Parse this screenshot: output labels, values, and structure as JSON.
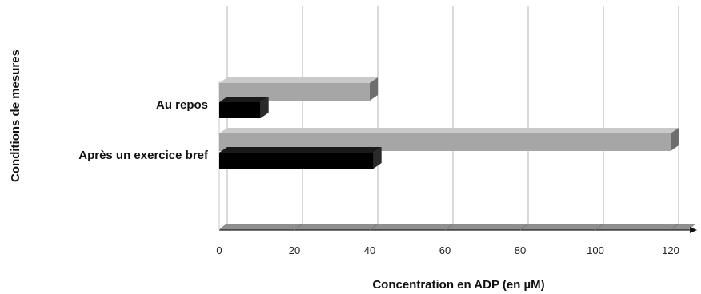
{
  "chart_data": {
    "type": "bar",
    "orientation": "horizontal",
    "style": "3d",
    "categories": [
      "Au repos",
      "Après un exercice bref"
    ],
    "series": [
      {
        "values": [
          40,
          120
        ],
        "color": "#a6a6a6"
      },
      {
        "values": [
          11,
          41
        ],
        "color": "#000000"
      }
    ],
    "xlabel": "Concentration en ADP (en µM)",
    "ylabel": "Conditions de mesures",
    "xlim": [
      0,
      120
    ],
    "xticks": [
      0,
      20,
      40,
      60,
      80,
      100,
      120
    ],
    "grid": true,
    "legend": "none"
  }
}
